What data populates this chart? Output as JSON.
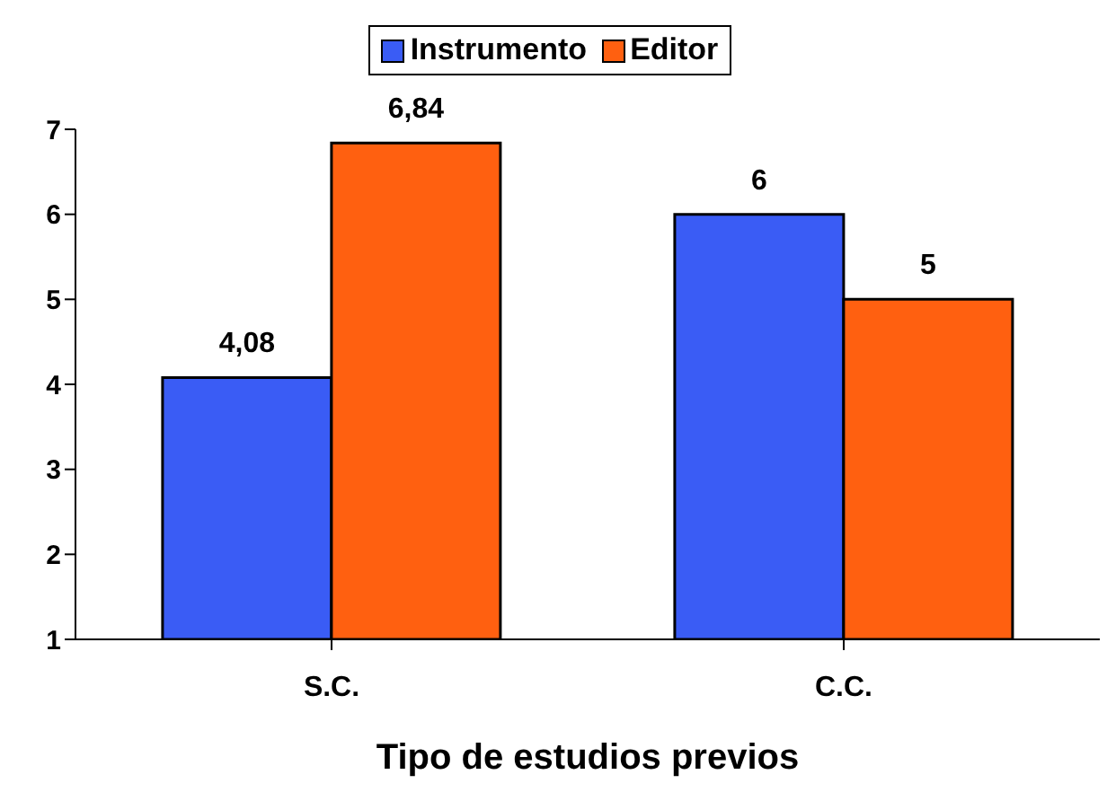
{
  "chart_data": {
    "type": "bar",
    "xlabel": "Tipo de estudios previos",
    "categories": [
      "S.C.",
      "C.C."
    ],
    "series": [
      {
        "name": "Instrumento",
        "color": "#3a5cf5",
        "values": [
          4.08,
          6
        ],
        "value_labels": [
          "4,08",
          "6"
        ]
      },
      {
        "name": "Editor",
        "color": "#ff6010",
        "values": [
          6.84,
          5
        ],
        "value_labels": [
          "6,84",
          "5"
        ]
      }
    ],
    "ylim": [
      1,
      7
    ],
    "yticks": [
      1,
      2,
      3,
      4,
      5,
      6,
      7
    ],
    "grid": false,
    "legend": "top"
  }
}
